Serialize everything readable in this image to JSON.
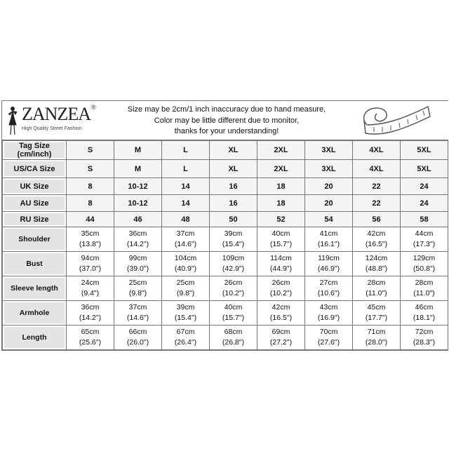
{
  "brand": {
    "name": "ZANZEA",
    "registered": "®",
    "tagline": "High Quality Street Fashion"
  },
  "notice": [
    "Size may be 2cm/1 inch inaccuracy due to hand measure,",
    "Color may be little different due to monitor,",
    "thanks for your understanding!"
  ],
  "icons": {
    "logo": "fashion-model-silhouette",
    "tape": "measuring-tape-icon"
  },
  "size_rows": [
    {
      "label": "Tag Size (cm/inch)",
      "values": [
        "S",
        "M",
        "L",
        "XL",
        "2XL",
        "3XL",
        "4XL",
        "5XL"
      ]
    },
    {
      "label": "US/CA Size",
      "values": [
        "S",
        "M",
        "L",
        "XL",
        "2XL",
        "3XL",
        "4XL",
        "5XL"
      ]
    },
    {
      "label": "UK Size",
      "values": [
        "8",
        "10-12",
        "14",
        "16",
        "18",
        "20",
        "22",
        "24"
      ]
    },
    {
      "label": "AU Size",
      "values": [
        "8",
        "10-12",
        "14",
        "16",
        "18",
        "20",
        "22",
        "24"
      ]
    },
    {
      "label": "RU Size",
      "values": [
        "44",
        "46",
        "48",
        "50",
        "52",
        "54",
        "56",
        "58"
      ]
    }
  ],
  "measure_rows": [
    {
      "label": "Shoulder",
      "cm": [
        "35cm",
        "36cm",
        "37cm",
        "39cm",
        "40cm",
        "41cm",
        "42cm",
        "44cm"
      ],
      "inch": [
        "(13.8\")",
        "(14.2\")",
        "(14.6\")",
        "(15.4\")",
        "(15.7\")",
        "(16.1\")",
        "(16.5\")",
        "(17.3\")"
      ]
    },
    {
      "label": "Bust",
      "cm": [
        "94cm",
        "99cm",
        "104cm",
        "109cm",
        "114cm",
        "119cm",
        "124cm",
        "129cm"
      ],
      "inch": [
        "(37.0\")",
        "(39.0\")",
        "(40.9\")",
        "(42.9\")",
        "(44.9\")",
        "(46.9\")",
        "(48.8\")",
        "(50.8\")"
      ]
    },
    {
      "label": "Sleeve length",
      "cm": [
        "24cm",
        "25cm",
        "25cm",
        "26cm",
        "26cm",
        "27cm",
        "28cm",
        "28cm"
      ],
      "inch": [
        "(9.4\")",
        "(9.8\")",
        "(9.8\")",
        "(10.2\")",
        "(10.2\")",
        "(10.6\")",
        "(11.0\")",
        "(11.0\")"
      ]
    },
    {
      "label": "Armhole",
      "cm": [
        "36cm",
        "37cm",
        "39cm",
        "40cm",
        "42cm",
        "43cm",
        "45cm",
        "46cm"
      ],
      "inch": [
        "(14.2\")",
        "(14.6\")",
        "(15.4\")",
        "(15.7\")",
        "(16.5\")",
        "(16.9\")",
        "(17.7\")",
        "(18.1\")"
      ]
    },
    {
      "label": "Length",
      "cm": [
        "65cm",
        "66cm",
        "67cm",
        "68cm",
        "69cm",
        "70cm",
        "71cm",
        "72cm"
      ],
      "inch": [
        "(25.6\")",
        "(26.0\")",
        "(26.4\")",
        "(26.8\")",
        "(27.2\")",
        "(27.6\")",
        "(28.0\")",
        "(28.3\")"
      ]
    }
  ]
}
